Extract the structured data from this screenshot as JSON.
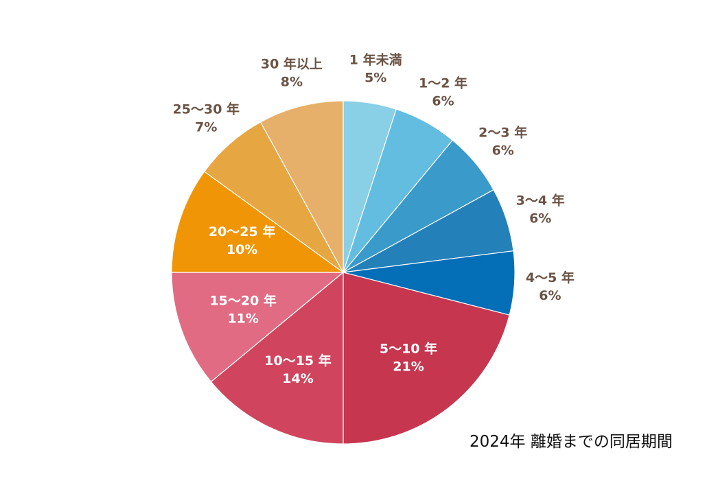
{
  "chart_data": {
    "type": "pie",
    "caption": "2024年 離婚までの同居期間",
    "slices": [
      {
        "label": "1 年未満",
        "value_label": "5%",
        "value": 5,
        "color": "#89cfe6",
        "label_position": "outside"
      },
      {
        "label": "1～2 年",
        "value_label": "6%",
        "value": 6,
        "color": "#63bde0",
        "label_position": "outside"
      },
      {
        "label": "2～3 年",
        "value_label": "6%",
        "value": 6,
        "color": "#3a9ac9",
        "label_position": "outside"
      },
      {
        "label": "3～4 年",
        "value_label": "6%",
        "value": 6,
        "color": "#2480b8",
        "label_position": "outside"
      },
      {
        "label": "4～5 年",
        "value_label": "6%",
        "value": 6,
        "color": "#046eb7",
        "label_position": "outside"
      },
      {
        "label": "5～10 年",
        "value_label": "21%",
        "value": 21,
        "color": "#c6364f",
        "label_position": "inside"
      },
      {
        "label": "10～15 年",
        "value_label": "14%",
        "value": 14,
        "color": "#d0455d",
        "label_position": "inside"
      },
      {
        "label": "15～20 年",
        "value_label": "11%",
        "value": 11,
        "color": "#e06b83",
        "label_position": "inside"
      },
      {
        "label": "20～25 年",
        "value_label": "10%",
        "value": 10,
        "color": "#f09505",
        "label_position": "inside"
      },
      {
        "label": "25～30 年",
        "value_label": "7%",
        "value": 7,
        "color": "#e6a642",
        "label_position": "outside"
      },
      {
        "label": "30 年以上",
        "value_label": "8%",
        "value": 8,
        "color": "#e6b06a",
        "label_position": "outside"
      }
    ]
  }
}
